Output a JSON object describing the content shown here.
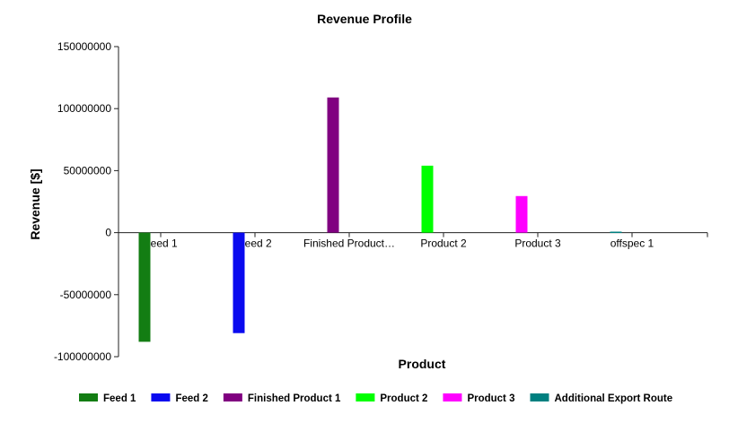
{
  "chart_data": {
    "type": "bar",
    "title": "Revenue Profile",
    "xlabel": "Product",
    "ylabel": "Revenue [$]",
    "ylim": [
      -100000000,
      150000000
    ],
    "yticks": [
      150000000,
      100000000,
      50000000,
      0,
      -50000000,
      -100000000
    ],
    "ytick_labels": [
      "150000000",
      "100000000",
      "50000000",
      "0",
      "-50000000",
      "-100000000"
    ],
    "categories": [
      "Feed 1",
      "Feed 2",
      "Finished Product…",
      "Product 2",
      "Product 3",
      "offspec 1"
    ],
    "series": [
      {
        "name": "Feed 1",
        "color": "#137d13",
        "category_index": 0,
        "value": -88000000
      },
      {
        "name": "Feed 2",
        "color": "#0a0aef",
        "category_index": 1,
        "value": -81000000
      },
      {
        "name": "Finished Product 1",
        "color": "#800080",
        "category_index": 2,
        "value": 109000000
      },
      {
        "name": "Product 2",
        "color": "#00ff00",
        "category_index": 3,
        "value": 54000000
      },
      {
        "name": "Product 3",
        "color": "#ff00ff",
        "category_index": 4,
        "value": 29500000
      },
      {
        "name": "Additional Export Route",
        "color": "#008080",
        "category_index": 5,
        "value": 800000
      }
    ],
    "grid": false,
    "legend_position": "bottom"
  }
}
